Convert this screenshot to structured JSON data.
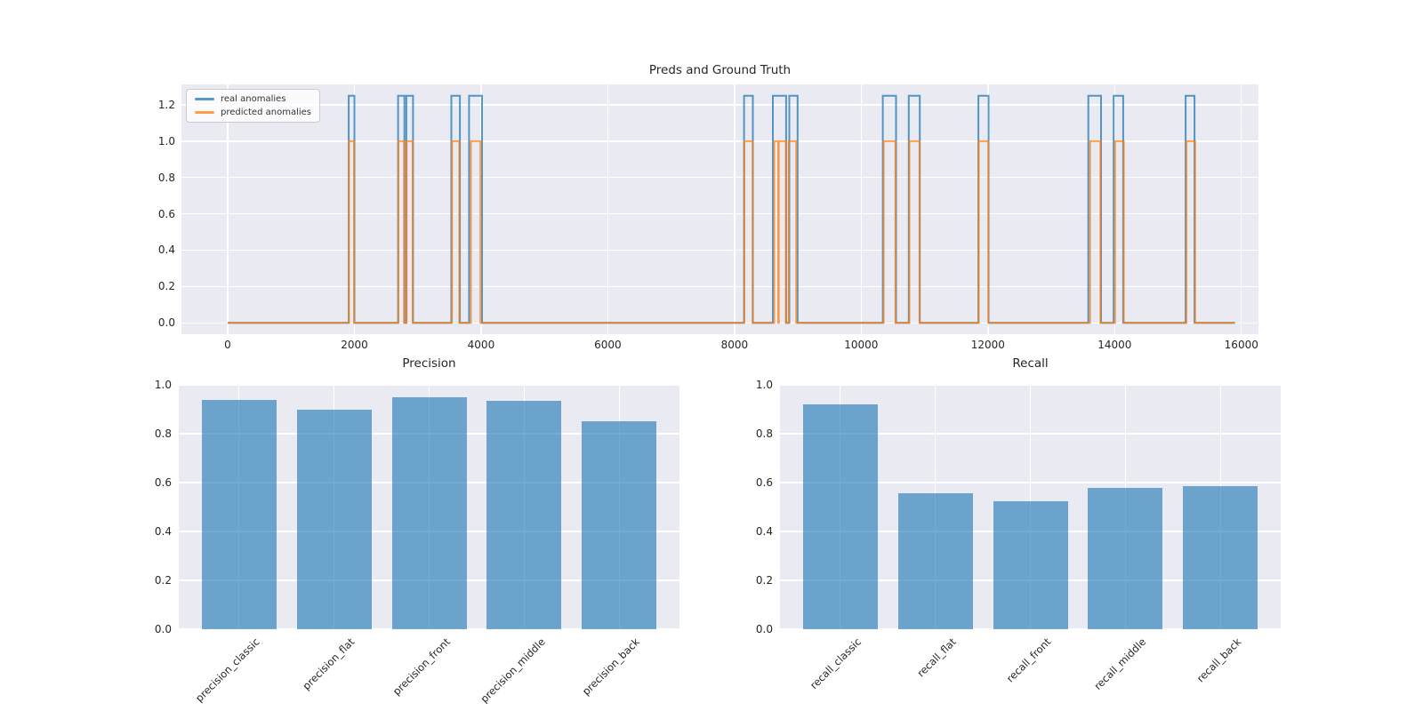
{
  "figure": {
    "background": "#ffffff",
    "axes_background": "#eaeaf2",
    "grid_color": "#ffffff",
    "text_color": "#262626",
    "accent_blue": "#1f77b4",
    "accent_orange": "#ff7f0e"
  },
  "chart_data": [
    {
      "type": "line",
      "title": "Preds and Ground Truth",
      "legend": {
        "position": "upper-left",
        "entries": [
          "real anomalies",
          "predicted anomalies"
        ]
      },
      "xlim": [
        -730,
        16270
      ],
      "ylim": [
        -0.0625,
        1.3125
      ],
      "x_ticks": [
        0,
        2000,
        4000,
        6000,
        8000,
        10000,
        12000,
        14000,
        16000
      ],
      "x_tick_labels": [
        "0",
        "2000",
        "4000",
        "6000",
        "8000",
        "10000",
        "12000",
        "14000",
        "16000"
      ],
      "y_ticks": [
        0,
        0.2,
        0.4,
        0.6,
        0.8,
        1.0,
        1.2
      ],
      "y_tick_labels": [
        "0.0",
        "0.2",
        "0.4",
        "0.6",
        "0.8",
        "1.0",
        "1.2"
      ],
      "grid": true,
      "series": [
        {
          "name": "real anomalies",
          "color": "rgba(31,119,180,0.75)",
          "baseline_value": 0,
          "pulse_value": 1.25,
          "x_start": 0,
          "x_end": 15900,
          "pulses": [
            [
              1910,
              2000
            ],
            [
              2690,
              2790
            ],
            [
              2820,
              2925
            ],
            [
              3530,
              3665
            ],
            [
              3810,
              4015
            ],
            [
              8150,
              8290
            ],
            [
              8605,
              8815
            ],
            [
              8865,
              8995
            ],
            [
              10340,
              10550
            ],
            [
              10750,
              10925
            ],
            [
              11850,
              12010
            ],
            [
              13585,
              13785
            ],
            [
              13985,
              14135
            ],
            [
              15120,
              15260
            ]
          ]
        },
        {
          "name": "predicted anomalies",
          "color": "rgba(255,127,14,0.75)",
          "baseline_value": 0,
          "pulse_value": 1.0,
          "x_start": 0,
          "x_end": 15900,
          "pulses": [
            [
              1915,
              1995
            ],
            [
              2695,
              2785
            ],
            [
              2825,
              2920
            ],
            [
              3540,
              3655
            ],
            [
              3840,
              3990
            ],
            [
              8155,
              8285
            ],
            [
              8627,
              8690
            ],
            [
              8700,
              8810
            ],
            [
              8855,
              8975
            ],
            [
              10355,
              10540
            ],
            [
              10760,
              10920
            ],
            [
              11855,
              12005
            ],
            [
              13613,
              13775
            ],
            [
              14007,
              14145
            ],
            [
              15133,
              15270
            ]
          ]
        }
      ]
    },
    {
      "type": "bar",
      "title": "Precision",
      "categories": [
        "precision_classic",
        "precision_flat",
        "precision_front",
        "precision_middle",
        "precision_back"
      ],
      "values": [
        0.94,
        0.9,
        0.95,
        0.935,
        0.85
      ],
      "ylim": [
        0,
        1.0
      ],
      "y_ticks": [
        0,
        0.2,
        0.4,
        0.6,
        0.8,
        1.0
      ],
      "y_tick_labels": [
        "0.0",
        "0.2",
        "0.4",
        "0.6",
        "0.8",
        "1.0"
      ],
      "bar_color": "rgba(31,119,180,0.62)",
      "grid": true,
      "xlabel_rotation": 45,
      "legend_position": "none"
    },
    {
      "type": "bar",
      "title": "Recall",
      "categories": [
        "recall_classic",
        "recall_flat",
        "recall_front",
        "recall_middle",
        "recall_back"
      ],
      "values": [
        0.92,
        0.555,
        0.525,
        0.58,
        0.585
      ],
      "ylim": [
        0,
        1.0
      ],
      "y_ticks": [
        0,
        0.2,
        0.4,
        0.6,
        0.8,
        1.0
      ],
      "y_tick_labels": [
        "0.0",
        "0.2",
        "0.4",
        "0.6",
        "0.8",
        "1.0"
      ],
      "bar_color": "rgba(31,119,180,0.62)",
      "grid": true,
      "xlabel_rotation": 45,
      "legend_position": "none"
    }
  ]
}
